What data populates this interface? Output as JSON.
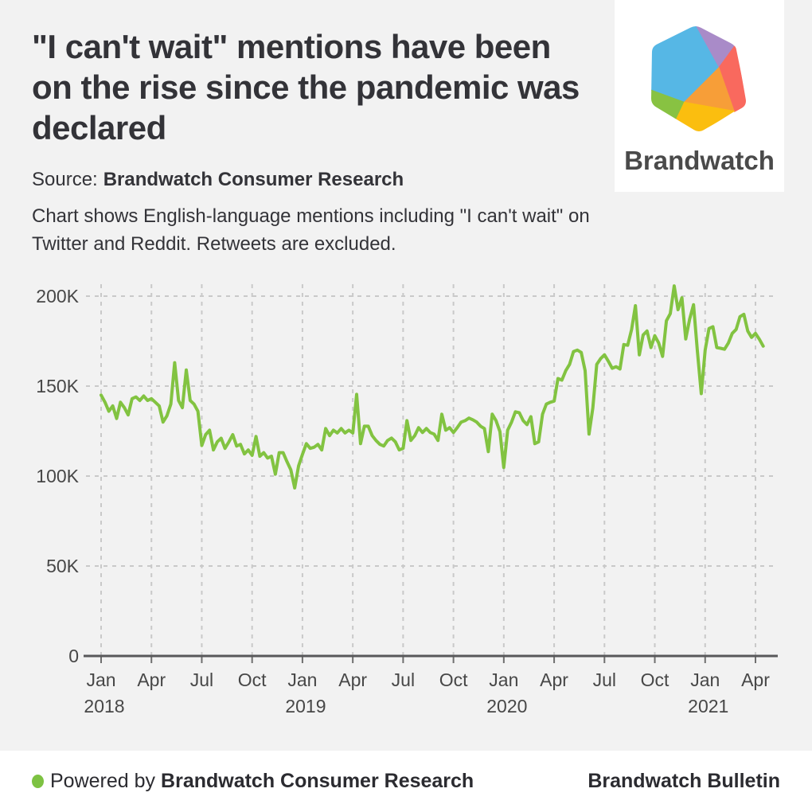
{
  "header": {
    "title_lines": [
      "\"I can't wait\" mentions have been",
      "on the rise since the pandemic was",
      "declared"
    ],
    "source_label": "Source:",
    "source_value": "Brandwatch Consumer Research",
    "description_lines": [
      "Chart shows English-language mentions including \"I can't wait\" on",
      "Twitter and Reddit. Retweets are excluded."
    ]
  },
  "logo": {
    "brand_name": "Brandwatch",
    "text_color": "#4a4a4a",
    "hex_colors": {
      "blue": "#56b7e5",
      "purple": "#a98bc8",
      "coral": "#f9695e",
      "orange": "#f79e38",
      "yellow": "#fbbe0f",
      "green": "#88c242"
    }
  },
  "chart_data": {
    "type": "line",
    "grid": true,
    "unit": "weekly mention volume, thousands",
    "ylim_thousands": [
      0,
      215
    ],
    "y_ticks": [
      {
        "value": 0,
        "label": "0"
      },
      {
        "value": 50,
        "label": "50K"
      },
      {
        "value": 100,
        "label": "100K"
      },
      {
        "value": 150,
        "label": "150K"
      },
      {
        "value": 200,
        "label": "200K"
      }
    ],
    "x_ticks": [
      {
        "month": "Jan",
        "year": "2018"
      },
      {
        "month": "Apr"
      },
      {
        "month": "Jul"
      },
      {
        "month": "Oct"
      },
      {
        "month": "Jan",
        "year": "2019"
      },
      {
        "month": "Apr"
      },
      {
        "month": "Jul"
      },
      {
        "month": "Oct"
      },
      {
        "month": "Jan",
        "year": "2020"
      },
      {
        "month": "Apr"
      },
      {
        "month": "Jul"
      },
      {
        "month": "Oct"
      },
      {
        "month": "Jan",
        "year": "2021"
      },
      {
        "month": "Apr"
      }
    ],
    "series": [
      {
        "name": "\"I can't wait\" mentions",
        "color": "#82c341",
        "points_per_quarter": 13,
        "values_thousands": [
          145,
          141,
          136,
          139,
          132,
          141,
          138,
          134,
          143,
          144,
          142,
          144.5,
          142,
          143,
          141,
          139,
          130,
          133.5,
          140,
          163,
          142,
          138,
          159,
          142,
          140,
          136,
          117,
          123,
          125.5,
          114.5,
          119,
          121,
          115.4,
          119,
          123,
          116.7,
          117.6,
          112.3,
          114.5,
          111.5,
          122,
          111,
          113,
          110,
          111,
          101,
          113,
          113,
          108,
          103.5,
          93.4,
          105.7,
          112,
          118,
          115.4,
          116,
          117.6,
          114.5,
          126.4,
          122.5,
          125.5,
          124,
          126.4,
          124,
          125.5,
          124,
          145.4,
          118,
          127.7,
          127.7,
          122.5,
          119.8,
          117.6,
          116.7,
          119.8,
          121.1,
          119,
          114.5,
          115.4,
          130.8,
          119.8,
          122.5,
          126.9,
          124.2,
          126.4,
          124.2,
          123.3,
          119.8,
          134.4,
          125.5,
          126.9,
          124.2,
          127,
          130,
          130.8,
          132.2,
          131.3,
          130,
          127.7,
          126.4,
          113.6,
          134.4,
          130.8,
          124.7,
          104.8,
          125.5,
          130,
          135.7,
          135.2,
          130.8,
          128.6,
          133,
          118,
          119,
          134.4,
          140,
          141,
          141.7,
          154.2,
          153.3,
          158.6,
          162.1,
          169.2,
          170,
          168.7,
          158.6,
          123.3,
          137.9,
          162.1,
          165.2,
          167.4,
          163.8,
          159.9,
          160.8,
          159.5,
          173.1,
          172.7,
          181.5,
          194.7,
          167.4,
          178.4,
          180.6,
          171.4,
          178,
          174,
          166.5,
          186.3,
          190.3,
          205.7,
          192.5,
          199.1,
          176.2,
          187.2,
          195.2,
          169.6,
          145.8,
          170,
          182,
          183,
          171.4,
          171,
          170.5,
          174,
          179.3,
          181.5,
          188.6,
          189.9,
          180.6,
          177.1,
          179.3,
          176,
          172.2
        ]
      }
    ]
  },
  "footer": {
    "powered_by_label": "Powered by",
    "powered_by_value": "Brandwatch Consumer Research",
    "right_text": "Brandwatch Bulletin",
    "dot_color": "#7dc242"
  }
}
